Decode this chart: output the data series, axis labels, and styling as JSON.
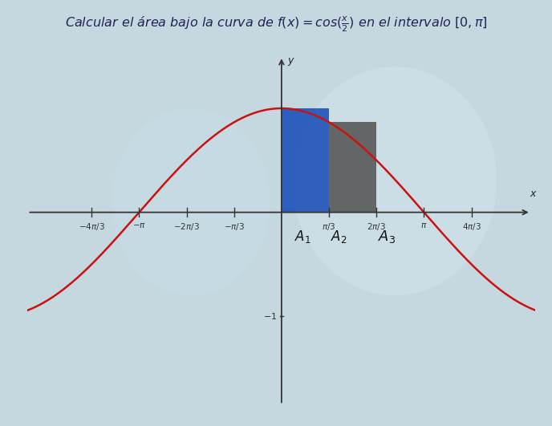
{
  "bg_color": "#c5d8e0",
  "curve_color": "#cc1111",
  "curve_linewidth": 1.8,
  "bar1_color": "#2255bb",
  "bar2_color": "#555555",
  "xlim": [
    -5.6,
    5.6
  ],
  "ylim": [
    -1.85,
    1.55
  ],
  "axis_color": "#333333",
  "tick_color": "#333333",
  "label_color": "#222222",
  "title_color": "#222255",
  "title_fontsize": 11.5,
  "tick_fontsize": 7.5,
  "area_label_fontsize": 12
}
